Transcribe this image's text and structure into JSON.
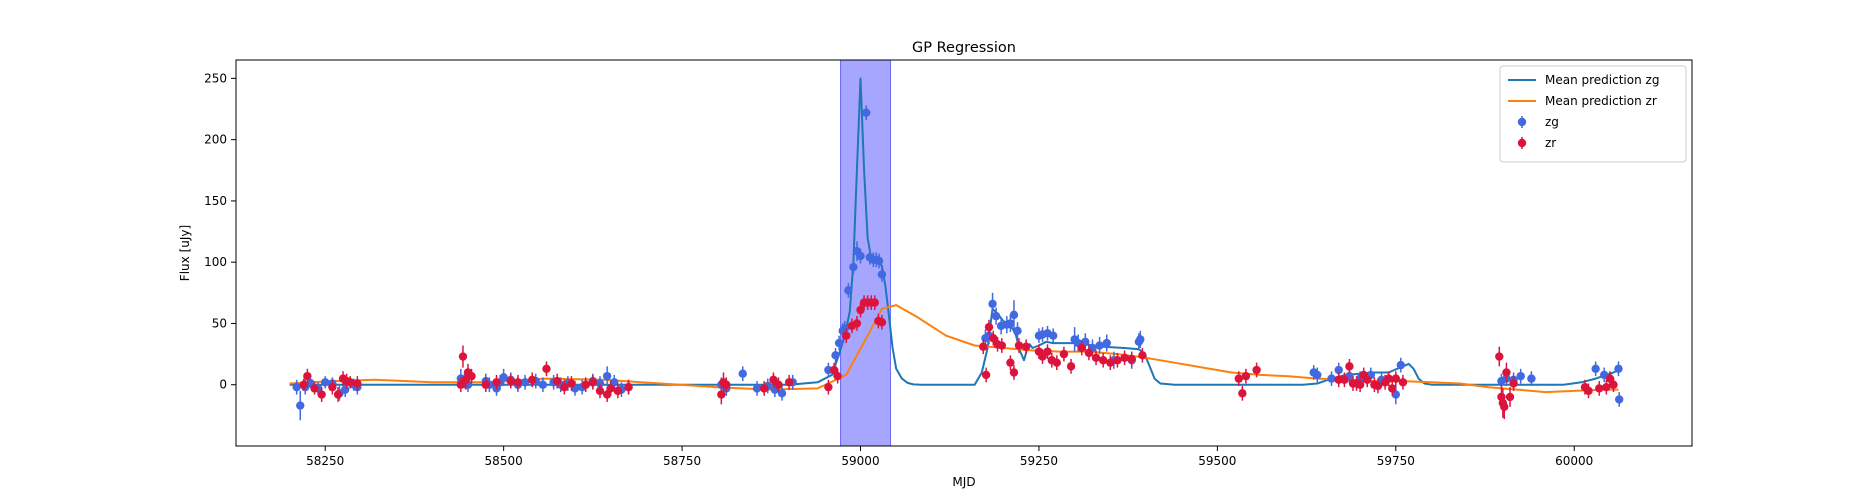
{
  "chart_data": {
    "type": "scatter",
    "title": "GP Regression",
    "xlabel": "MJD",
    "ylabel": "Flux [uJy]",
    "xlim": [
      58125,
      60165
    ],
    "ylim": [
      -50,
      265
    ],
    "xticks": [
      58250,
      58500,
      58750,
      59000,
      59250,
      59500,
      59750,
      60000
    ],
    "yticks": [
      0,
      50,
      100,
      150,
      200,
      250
    ],
    "grid": false,
    "legend_placement": "top-right",
    "highlight_span": {
      "x0": 58972,
      "x1": 59042,
      "color": "#0000ff",
      "alpha": 0.35
    },
    "colors": {
      "mean_zg": "#1f77b4",
      "mean_zr": "#ff7f0e",
      "zg": "#4169e1",
      "zr": "#dc143c"
    },
    "legend": [
      {
        "label": "Mean prediction zg",
        "kind": "line",
        "color": "#1f77b4"
      },
      {
        "label": "Mean prediction zr",
        "kind": "line",
        "color": "#ff7f0e"
      },
      {
        "label": "zg",
        "kind": "errorbar",
        "color": "#4169e1"
      },
      {
        "label": "zr",
        "kind": "errorbar",
        "color": "#dc143c"
      }
    ],
    "series": [
      {
        "name": "Mean prediction zg",
        "kind": "line",
        "x": [
          58200,
          58900,
          58940,
          58960,
          58970,
          58978,
          58985,
          58990,
          58995,
          59000,
          59005,
          59010,
          59015,
          59020,
          59025,
          59030,
          59035,
          59040,
          59045,
          59050,
          59058,
          59066,
          59074,
          59085,
          59095,
          59105,
          59120,
          59140,
          59150,
          59160,
          59170,
          59178,
          59185,
          59192,
          59200,
          59207,
          59213,
          59218,
          59223,
          59229,
          59233,
          59237,
          59241,
          59250,
          59260,
          59270,
          59300,
          59340,
          59370,
          59390,
          59398,
          59405,
          59412,
          59420,
          59440,
          59620,
          59640,
          59660,
          59680,
          59700,
          59720,
          59740,
          59760,
          59768,
          59775,
          59782,
          59790,
          59800,
          59985,
          60010,
          60030,
          60045,
          60055,
          60062
        ],
        "y": [
          0,
          0,
          2,
          8,
          25,
          40,
          60,
          100,
          175,
          250,
          175,
          120,
          103,
          101,
          100,
          97,
          80,
          55,
          30,
          13,
          5,
          1.5,
          0.3,
          0,
          0,
          0,
          0,
          0,
          0,
          0,
          10,
          30,
          62,
          58,
          52,
          48,
          46,
          40,
          28,
          20,
          28,
          33,
          30,
          32,
          35,
          34,
          34,
          31,
          30,
          29,
          25,
          15,
          5,
          1,
          0,
          0,
          1,
          5,
          8,
          9,
          10,
          10,
          15,
          17,
          13,
          5,
          1,
          0,
          0,
          2,
          5,
          8,
          10,
          12
        ]
      },
      {
        "name": "Mean prediction zr",
        "kind": "line",
        "x": [
          58200,
          58260,
          58320,
          58400,
          58480,
          58560,
          58640,
          58720,
          58800,
          58870,
          58940,
          58980,
          59010,
          59030,
          59050,
          59080,
          59120,
          59160,
          59200,
          59240,
          59280,
          59320,
          59360,
          59400,
          59440,
          59480,
          59520,
          59560,
          59600,
          59640,
          59680,
          59720,
          59760,
          59800,
          59840,
          59880,
          59920,
          59960,
          60000,
          60040,
          60062
        ],
        "y": [
          1,
          3,
          4,
          2,
          2,
          5,
          4,
          1,
          -2,
          -4,
          -3,
          8,
          40,
          62,
          65,
          55,
          40,
          32,
          30,
          28,
          27,
          27,
          25,
          22,
          18,
          14,
          10,
          8,
          7,
          5,
          4,
          3,
          3,
          2,
          1,
          -2,
          -4,
          -6,
          -5,
          -4,
          -4
        ]
      },
      {
        "name": "zg",
        "kind": "errorbar",
        "x": [
          58210,
          58215,
          58222,
          58230,
          58240,
          58250,
          58260,
          58270,
          58278,
          58285,
          58290,
          58295,
          58440,
          58445,
          58450,
          58475,
          58480,
          58490,
          58495,
          58500,
          58510,
          58520,
          58530,
          58545,
          58555,
          58570,
          58580,
          58590,
          58600,
          58610,
          58625,
          58635,
          58645,
          58655,
          58665,
          58675,
          58805,
          58812,
          58835,
          58855,
          58870,
          58880,
          58890,
          58905,
          58955,
          58965,
          58970,
          58975,
          58978,
          58983,
          58990,
          58995,
          59000,
          59008,
          59013,
          59018,
          59022,
          59026,
          59030,
          59175,
          59180,
          59185,
          59190,
          59197,
          59205,
          59210,
          59215,
          59220,
          59250,
          59255,
          59262,
          59270,
          59300,
          59305,
          59315,
          59325,
          59335,
          59345,
          59355,
          59380,
          59390,
          59392,
          59635,
          59640,
          59660,
          59670,
          59685,
          59700,
          59715,
          59730,
          59750,
          59757,
          59898,
          59905,
          59915,
          59925,
          59940,
          60030,
          60042,
          60062,
          60063
        ],
        "y": [
          -2,
          -17,
          -2,
          1,
          -3,
          2,
          1,
          -7,
          -4,
          2,
          0,
          -2,
          5,
          3,
          0,
          3,
          0,
          -3,
          2,
          6,
          4,
          0,
          2,
          3,
          0,
          2,
          0,
          1,
          -3,
          -2,
          3,
          1,
          7,
          2,
          -4,
          -2,
          0,
          -3,
          9,
          -3,
          -1,
          -4,
          -7,
          2,
          12,
          24,
          34,
          44,
          46,
          77,
          96,
          109,
          105,
          222,
          104,
          102,
          102,
          101,
          90,
          38,
          40,
          66,
          56,
          48,
          49,
          50,
          57,
          44,
          40,
          41,
          42,
          40,
          37,
          34,
          35,
          30,
          32,
          34,
          20,
          20,
          35,
          37,
          10,
          8,
          5,
          12,
          7,
          5,
          8,
          4,
          -8,
          16,
          3,
          5,
          4,
          7,
          5,
          13,
          8,
          13,
          -12
        ],
        "err": [
          6,
          12,
          6,
          4,
          5,
          5,
          5,
          6,
          6,
          5,
          5,
          6,
          8,
          6,
          6,
          6,
          6,
          6,
          6,
          7,
          6,
          6,
          6,
          6,
          6,
          6,
          6,
          6,
          6,
          6,
          6,
          6,
          8,
          6,
          6,
          6,
          6,
          6,
          6,
          6,
          6,
          6,
          6,
          6,
          6,
          6,
          6,
          6,
          6,
          6,
          6,
          8,
          6,
          6,
          6,
          6,
          6,
          6,
          6,
          7,
          7,
          9,
          7,
          7,
          7,
          7,
          12,
          7,
          6,
          6,
          6,
          6,
          10,
          7,
          7,
          7,
          7,
          7,
          7,
          7,
          7,
          7,
          6,
          6,
          6,
          6,
          6,
          6,
          6,
          6,
          8,
          6,
          6,
          6,
          6,
          6,
          6,
          6,
          6,
          6,
          6
        ]
      },
      {
        "name": "zr",
        "kind": "errorbar",
        "x": [
          58220,
          58225,
          58235,
          58245,
          58260,
          58268,
          58275,
          58280,
          58285,
          58295,
          58440,
          58443,
          58447,
          58450,
          58455,
          58475,
          58490,
          58510,
          58520,
          58540,
          58560,
          58575,
          58585,
          58595,
          58615,
          58625,
          58635,
          58645,
          58650,
          58660,
          58675,
          58805,
          58808,
          58812,
          58865,
          58878,
          58885,
          58900,
          58955,
          58963,
          58968,
          58980,
          58988,
          58995,
          59000,
          59005,
          59010,
          59015,
          59020,
          59025,
          59030,
          59172,
          59176,
          59180,
          59186,
          59192,
          59198,
          59210,
          59215,
          59222,
          59232,
          59250,
          59255,
          59262,
          59268,
          59275,
          59285,
          59295,
          59310,
          59320,
          59330,
          59340,
          59350,
          59360,
          59370,
          59380,
          59395,
          59530,
          59535,
          59540,
          59555,
          59670,
          59678,
          59685,
          59690,
          59695,
          59700,
          59705,
          59710,
          59720,
          59725,
          59735,
          59740,
          59745,
          59750,
          59760,
          59895,
          59898,
          59900,
          59902,
          59905,
          59910,
          59915,
          60015,
          60020,
          60035,
          60045,
          60050,
          60055
        ],
        "y": [
          0,
          7,
          -3,
          -8,
          -2,
          -8,
          5,
          3,
          2,
          1,
          0,
          23,
          4,
          10,
          7,
          0,
          2,
          3,
          2,
          4,
          13,
          3,
          -2,
          1,
          0,
          2,
          -5,
          -8,
          -3,
          -5,
          -2,
          -8,
          2,
          0,
          -3,
          4,
          0,
          2,
          -2,
          12,
          7,
          40,
          48,
          50,
          61,
          67,
          67,
          67,
          67,
          52,
          51,
          31,
          8,
          47,
          38,
          33,
          32,
          18,
          10,
          32,
          31,
          27,
          23,
          27,
          20,
          18,
          25,
          15,
          30,
          26,
          22,
          20,
          18,
          20,
          22,
          21,
          24,
          5,
          -7,
          7,
          12,
          4,
          4,
          15,
          1,
          1,
          0,
          8,
          4,
          0,
          -1,
          2,
          5,
          -3,
          5,
          2,
          23,
          -10,
          -15,
          -18,
          10,
          -10,
          1,
          -2,
          -5,
          -3,
          -2,
          5,
          0
        ],
        "err": [
          5,
          6,
          5,
          6,
          6,
          6,
          6,
          6,
          5,
          6,
          6,
          9,
          8,
          7,
          6,
          6,
          6,
          6,
          6,
          6,
          6,
          6,
          6,
          6,
          6,
          6,
          6,
          6,
          6,
          6,
          6,
          8,
          8,
          6,
          6,
          6,
          6,
          6,
          6,
          6,
          6,
          6,
          6,
          6,
          6,
          6,
          6,
          6,
          6,
          6,
          6,
          6,
          6,
          6,
          6,
          6,
          6,
          6,
          6,
          6,
          6,
          6,
          6,
          6,
          6,
          6,
          6,
          6,
          6,
          6,
          6,
          6,
          6,
          6,
          6,
          6,
          6,
          6,
          6,
          6,
          6,
          6,
          6,
          6,
          6,
          6,
          6,
          6,
          6,
          6,
          6,
          6,
          6,
          6,
          6,
          6,
          8,
          10,
          12,
          10,
          8,
          8,
          6,
          6,
          6,
          6,
          6,
          6,
          6
        ]
      }
    ]
  }
}
